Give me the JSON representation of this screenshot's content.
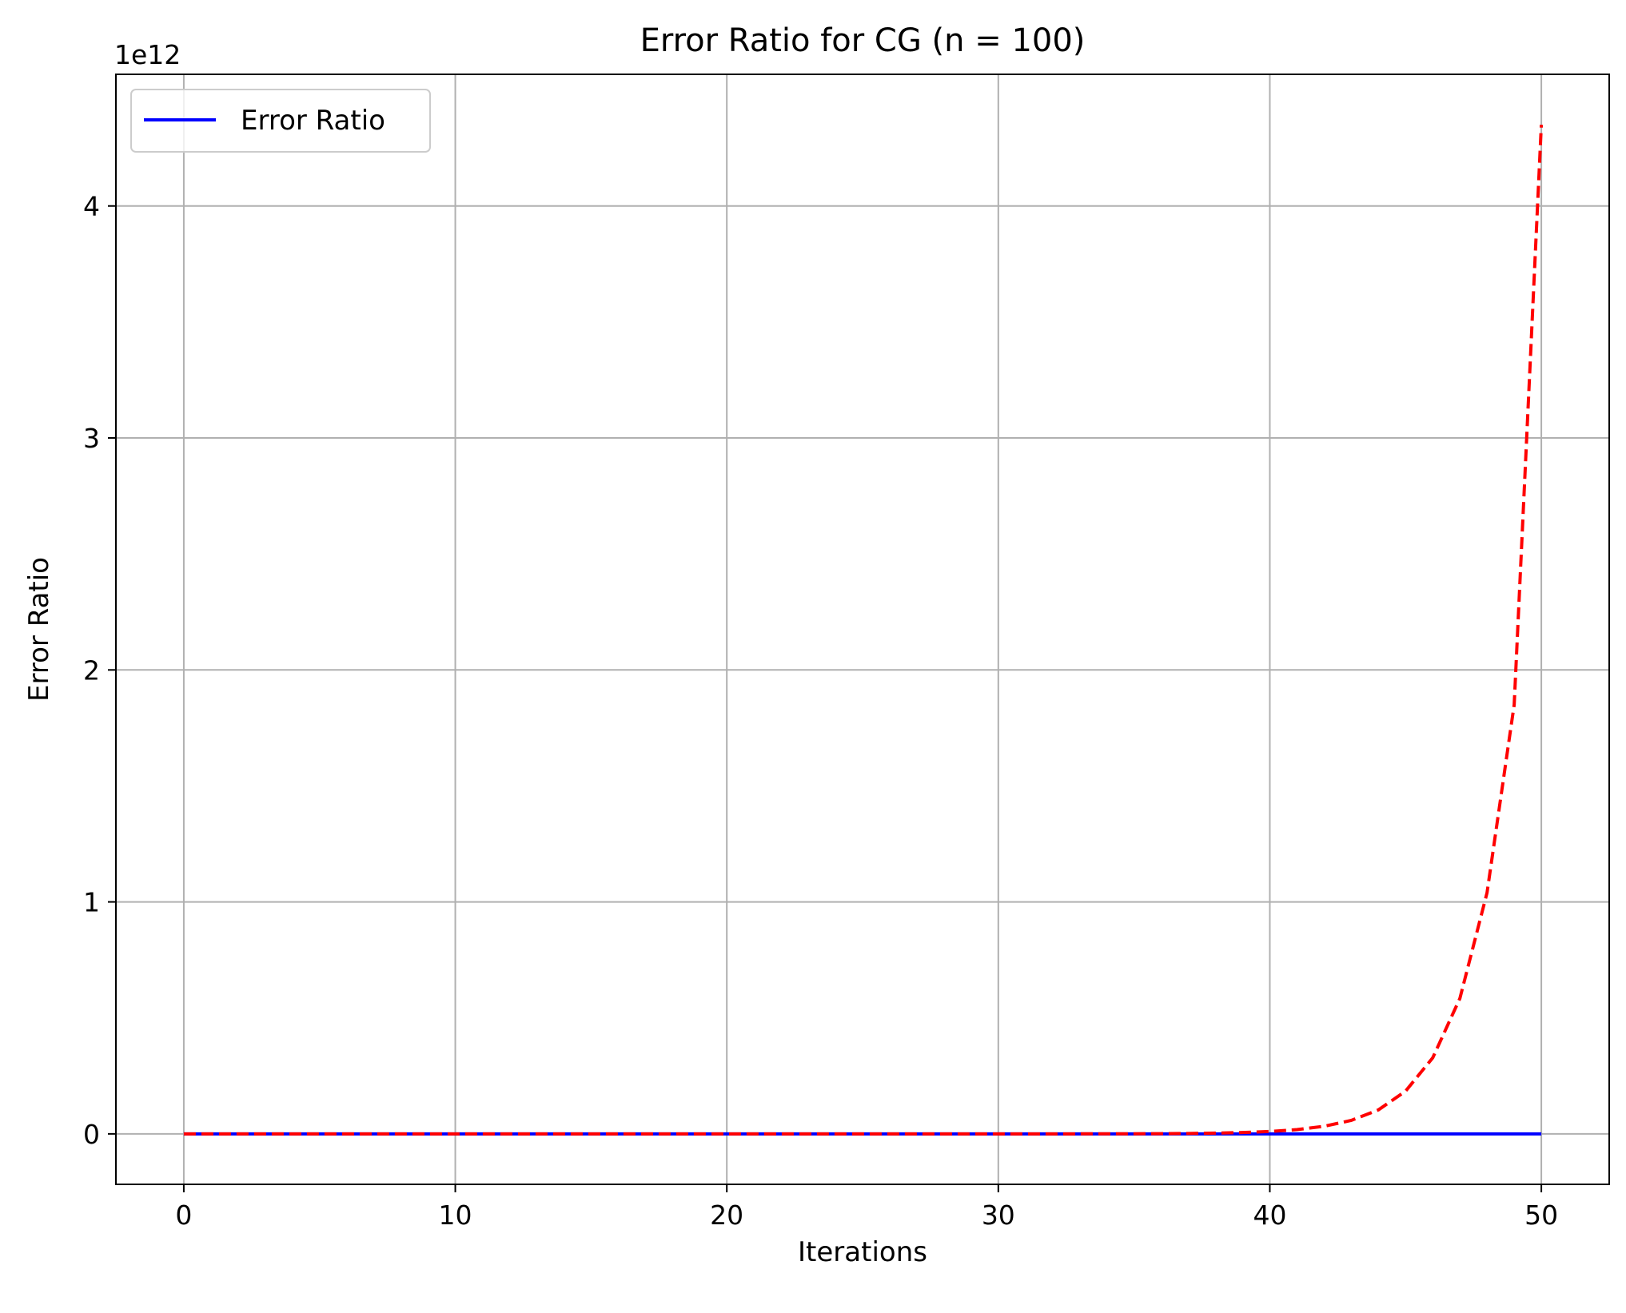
{
  "chart_data": {
    "type": "line",
    "title": "Error Ratio for CG (n = 100)",
    "xlabel": "Iterations",
    "ylabel": "Error Ratio",
    "y_offset_label": "1e12",
    "xlim": [
      -2.5,
      52.5
    ],
    "ylim": [
      -217500000000.0,
      4567500000000.0
    ],
    "x_ticks": [
      0,
      10,
      20,
      30,
      40,
      50
    ],
    "x_tick_labels": [
      "0",
      "10",
      "20",
      "30",
      "40",
      "50"
    ],
    "y_ticks": [
      0,
      1000000000000.0,
      2000000000000.0,
      3000000000000.0,
      4000000000000.0
    ],
    "y_tick_labels": [
      "0",
      "1",
      "2",
      "3",
      "4"
    ],
    "grid": true,
    "legend": {
      "position": "top-left",
      "entries": [
        "Error Ratio"
      ]
    },
    "x": [
      0,
      1,
      2,
      3,
      4,
      5,
      6,
      7,
      8,
      9,
      10,
      11,
      12,
      13,
      14,
      15,
      16,
      17,
      18,
      19,
      20,
      21,
      22,
      23,
      24,
      25,
      26,
      27,
      28,
      29,
      30,
      31,
      32,
      33,
      34,
      35,
      36,
      37,
      38,
      39,
      40,
      41,
      42,
      43,
      44,
      45,
      46,
      47,
      48,
      49,
      50
    ],
    "series": [
      {
        "name": "Error Ratio",
        "color": "#0000ff",
        "style": "solid",
        "values": [
          0,
          0,
          0,
          0,
          0,
          0,
          0,
          0,
          0,
          0,
          0,
          0,
          0,
          0,
          0,
          0,
          0,
          0,
          0,
          0,
          0,
          0,
          0,
          0,
          0,
          0,
          0,
          0,
          0,
          0,
          0,
          0,
          0,
          0,
          0,
          0,
          0,
          0,
          0,
          0,
          0,
          0,
          0,
          0,
          0,
          0,
          0,
          0,
          0,
          0,
          0
        ]
      },
      {
        "color": "#ff0000",
        "style": "dashed",
        "values": [
          1,
          1.78,
          3.17,
          5.64,
          10.0,
          17.8,
          31.7,
          56.4,
          100,
          178,
          317,
          564,
          1004,
          1787,
          3180,
          5661,
          10077,
          17937,
          31928,
          56832,
          101161,
          180068,
          320521,
          570527,
          1015538,
          1807657,
          3217630,
          5727381,
          10194739,
          18146630,
          32301000,
          57496000,
          102343000,
          182170000,
          324263000,
          577188000,
          1027394000,
          1828761000,
          3255194000,
          5794245000,
          10313700000,
          18358300000,
          32677700000,
          58166400000,
          103536000000,
          184294000000,
          328043000000,
          583917000000,
          1039370000000,
          1850090000000,
          4350000000000
        ]
      }
    ]
  }
}
